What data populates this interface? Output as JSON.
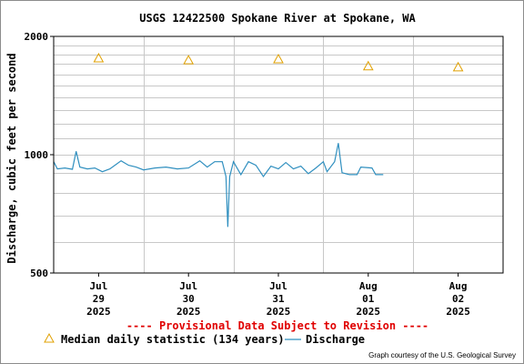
{
  "chart_data": {
    "type": "line",
    "title": "USGS 12422500 Spokane River at Spokane, WA",
    "ylabel": "Discharge, cubic feet per second",
    "xlabel": "",
    "y_scale": "log",
    "ylim": [
      500,
      2000
    ],
    "y_ticks": [
      "500",
      "1000",
      "2000"
    ],
    "xlim": [
      "2025-07-29T00:00",
      "2025-08-02T24:00"
    ],
    "x_ticks": [
      {
        "line1": "Jul",
        "line2": "29",
        "line3": "2025"
      },
      {
        "line1": "Jul",
        "line2": "30",
        "line3": "2025"
      },
      {
        "line1": "Jul",
        "line2": "31",
        "line3": "2025"
      },
      {
        "line1": "Aug",
        "line2": "01",
        "line3": "2025"
      },
      {
        "line1": "Aug",
        "line2": "02",
        "line3": "2025"
      }
    ],
    "grid": true,
    "series": [
      {
        "name": "Discharge",
        "color": "#2f8fbf",
        "points": [
          [
            "2025-07-29T00:00",
            960
          ],
          [
            "2025-07-29T01:00",
            920
          ],
          [
            "2025-07-29T03:00",
            925
          ],
          [
            "2025-07-29T05:00",
            918
          ],
          [
            "2025-07-29T06:00",
            1020
          ],
          [
            "2025-07-29T07:00",
            930
          ],
          [
            "2025-07-29T09:00",
            920
          ],
          [
            "2025-07-29T11:00",
            925
          ],
          [
            "2025-07-29T13:00",
            905
          ],
          [
            "2025-07-29T15:00",
            920
          ],
          [
            "2025-07-29T18:00",
            965
          ],
          [
            "2025-07-29T20:00",
            940
          ],
          [
            "2025-07-29T22:00",
            930
          ],
          [
            "2025-07-30T00:00",
            915
          ],
          [
            "2025-07-30T03:00",
            925
          ],
          [
            "2025-07-30T06:00",
            930
          ],
          [
            "2025-07-30T09:00",
            920
          ],
          [
            "2025-07-30T12:00",
            925
          ],
          [
            "2025-07-30T15:00",
            965
          ],
          [
            "2025-07-30T17:00",
            930
          ],
          [
            "2025-07-30T19:00",
            960
          ],
          [
            "2025-07-30T21:00",
            960
          ],
          [
            "2025-07-30T22:00",
            880
          ],
          [
            "2025-07-30T22:30",
            655
          ],
          [
            "2025-07-30T23:00",
            880
          ],
          [
            "2025-07-31T00:00",
            960
          ],
          [
            "2025-07-31T02:00",
            890
          ],
          [
            "2025-07-31T04:00",
            960
          ],
          [
            "2025-07-31T06:00",
            940
          ],
          [
            "2025-07-31T08:00",
            880
          ],
          [
            "2025-07-31T10:00",
            935
          ],
          [
            "2025-07-31T12:00",
            920
          ],
          [
            "2025-07-31T14:00",
            955
          ],
          [
            "2025-07-31T16:00",
            920
          ],
          [
            "2025-07-31T18:00",
            935
          ],
          [
            "2025-07-31T20:00",
            895
          ],
          [
            "2025-07-31T22:00",
            925
          ],
          [
            "2025-08-01T00:00",
            960
          ],
          [
            "2025-08-01T01:00",
            905
          ],
          [
            "2025-08-01T03:00",
            960
          ],
          [
            "2025-08-01T04:00",
            1070
          ],
          [
            "2025-08-01T05:00",
            900
          ],
          [
            "2025-08-01T07:00",
            890
          ],
          [
            "2025-08-01T09:00",
            890
          ],
          [
            "2025-08-01T10:00",
            930
          ],
          [
            "2025-08-01T13:00",
            925
          ],
          [
            "2025-08-01T14:00",
            890
          ],
          [
            "2025-08-01T16:00",
            890
          ]
        ]
      },
      {
        "name": "Median daily statistic (134 years)",
        "marker": "triangle",
        "color": "#e0a000",
        "points": [
          [
            "2025-07-29T12:00",
            1760
          ],
          [
            "2025-07-30T12:00",
            1740
          ],
          [
            "2025-07-31T12:00",
            1750
          ],
          [
            "2025-08-01T12:00",
            1680
          ],
          [
            "2025-08-02T12:00",
            1670
          ]
        ]
      }
    ],
    "legend": {
      "placement": "bottom",
      "median_label": "Median daily statistic (134 years)",
      "discharge_label": "Discharge"
    },
    "notice": "---- Provisional Data Subject to Revision ----",
    "credit": "Graph courtesy of the U.S. Geological Survey"
  }
}
